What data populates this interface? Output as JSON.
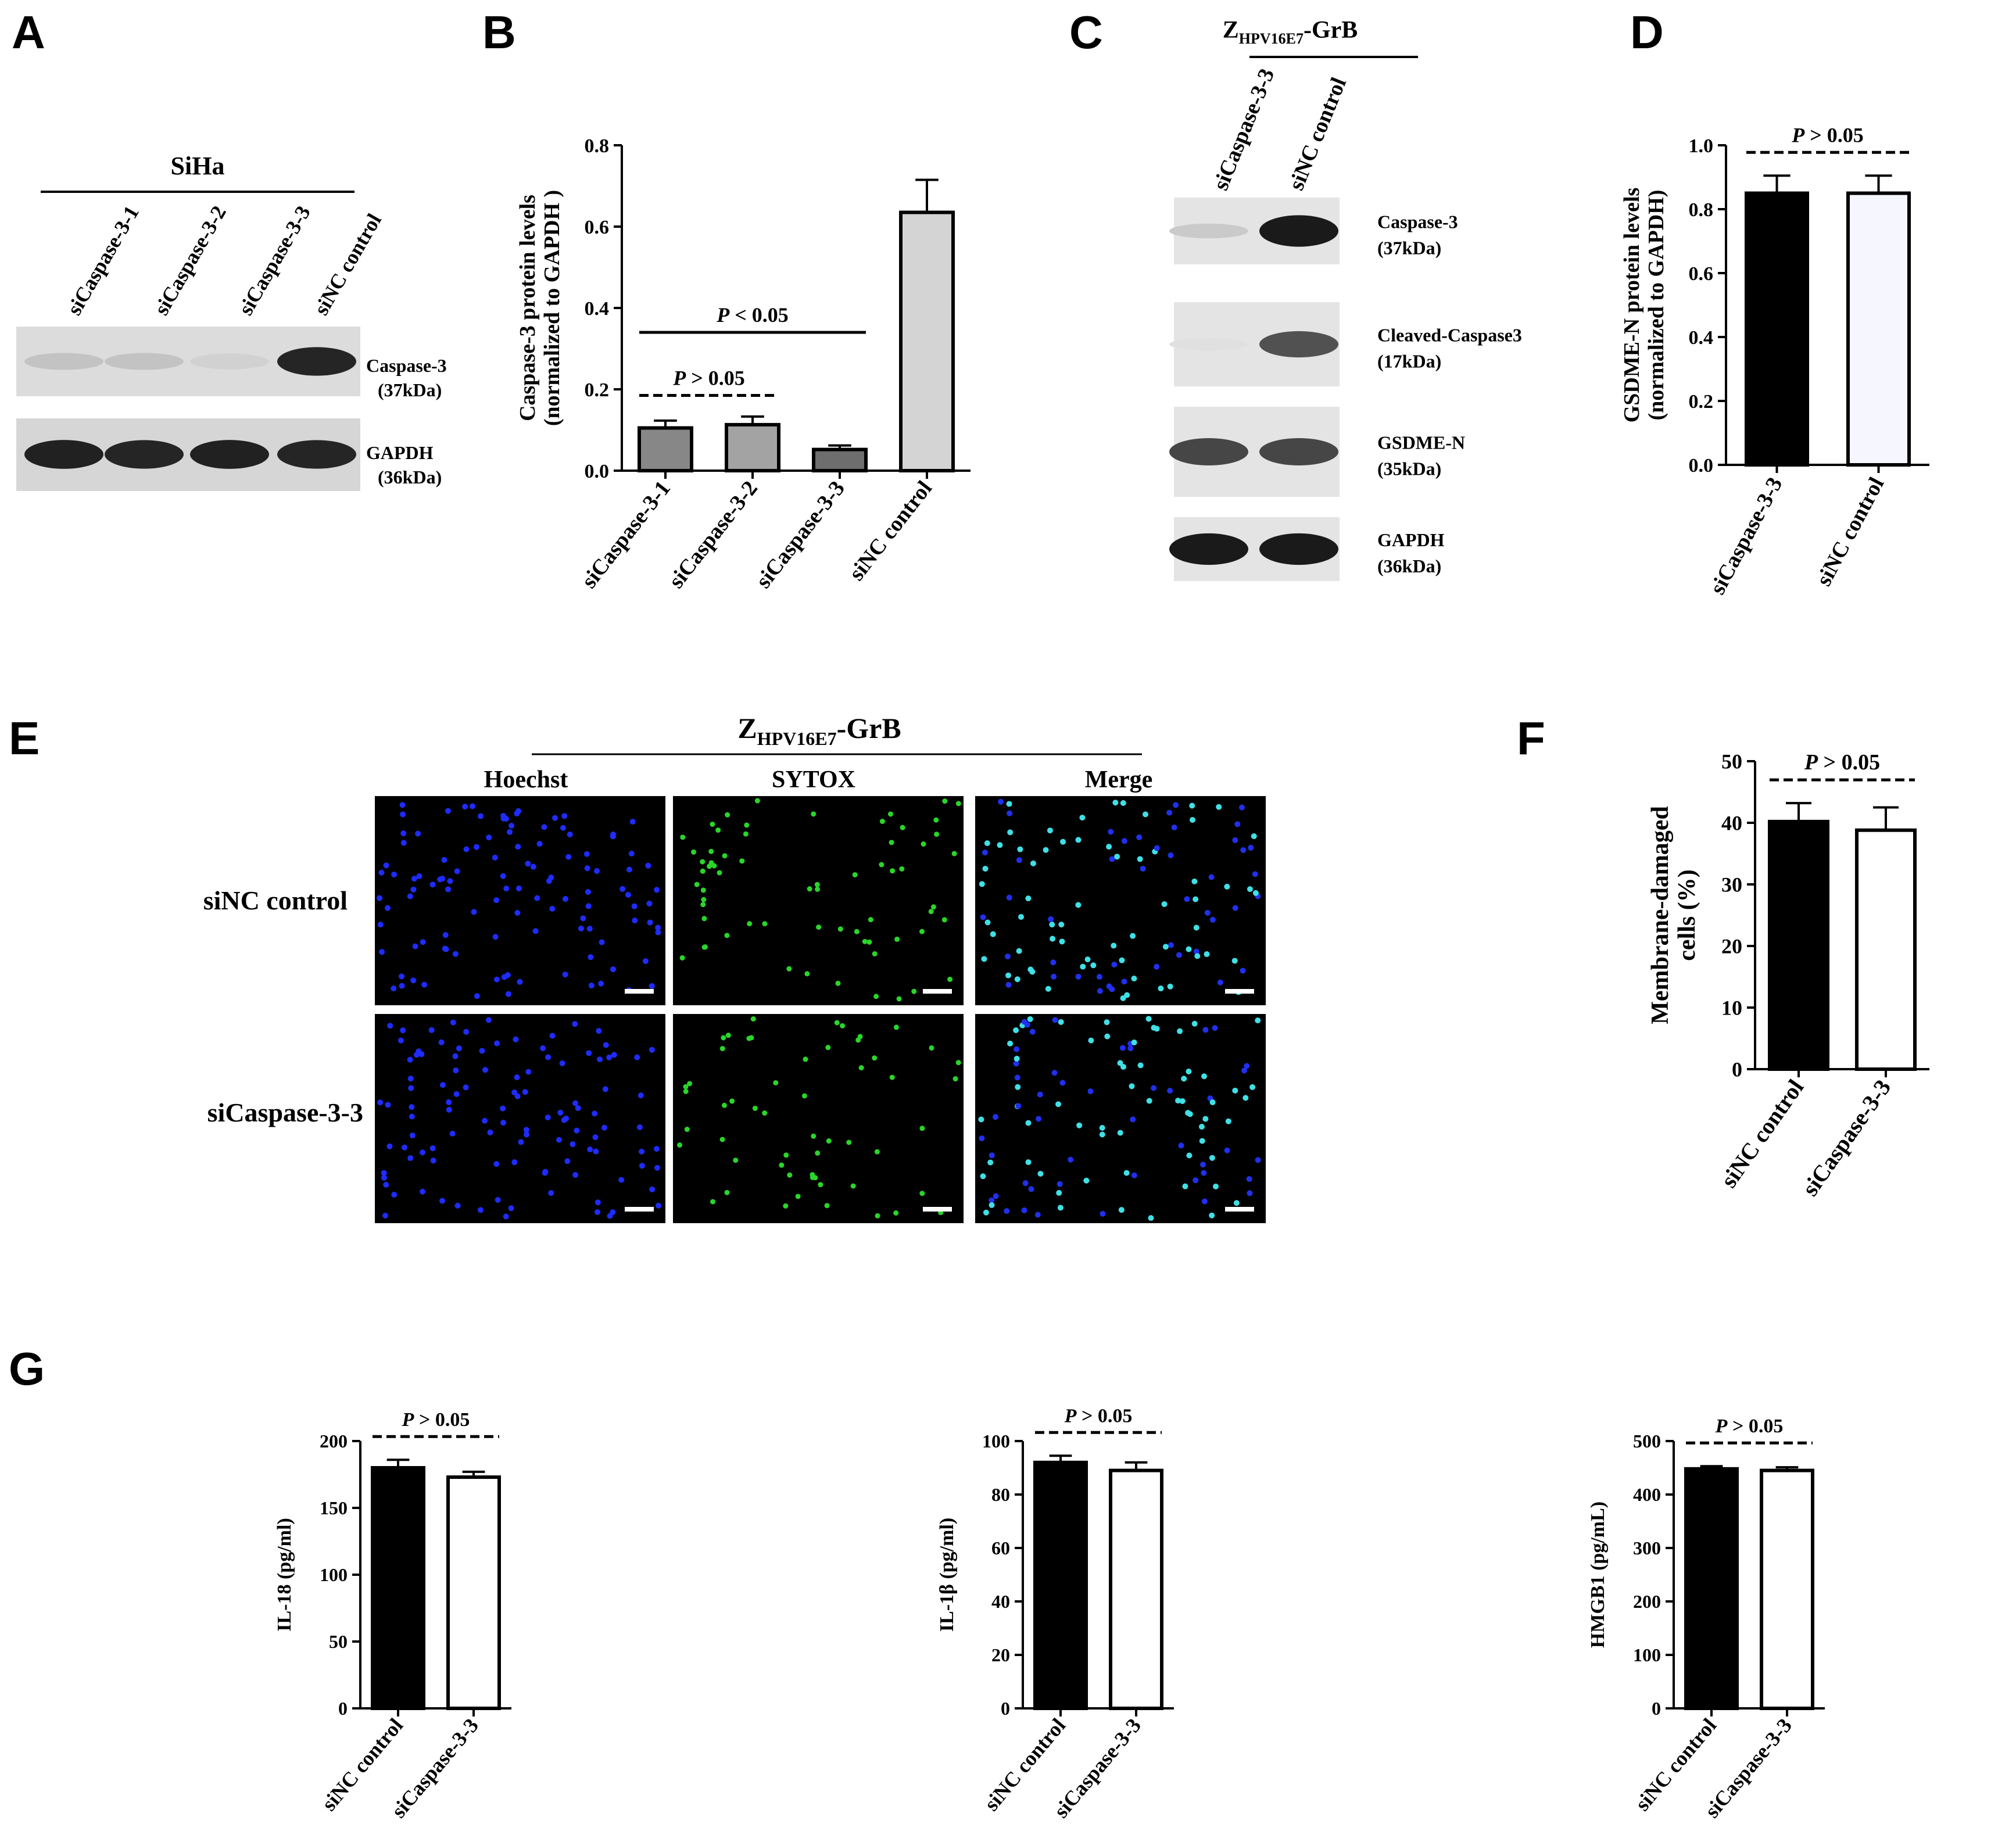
{
  "panel_labels": {
    "A": "A",
    "B": "B",
    "C": "C",
    "D": "D",
    "E": "E",
    "F": "F",
    "G": "G"
  },
  "panel_a": {
    "cell_line": "SiHa",
    "lanes": [
      "siCaspase-3-1",
      "siCaspase-3-2",
      "siCaspase-3-3",
      "siNC control"
    ],
    "bands": [
      {
        "name": "Caspase-3",
        "size": "(37kDa)",
        "intensities": [
          0.18,
          0.18,
          0.12,
          0.9
        ]
      },
      {
        "name": "GAPDH",
        "size": "(36kDa)",
        "intensities": [
          0.92,
          0.9,
          0.92,
          0.9
        ]
      }
    ]
  },
  "panel_c": {
    "treatment_main": "Z",
    "treatment_sub": "HPV16E7",
    "treatment_tail": "-GrB",
    "lanes": [
      "siCaspase-3-3",
      "siNC control"
    ],
    "bands": [
      {
        "name": "Caspase-3",
        "size": "(37kDa)",
        "intensities": [
          0.15,
          0.95
        ]
      },
      {
        "name": "Cleaved-Caspase3",
        "size": "(17kDa)",
        "intensities": [
          0.05,
          0.7
        ]
      },
      {
        "name": "GSDME-N",
        "size": "(35kDa)",
        "intensities": [
          0.75,
          0.75
        ]
      },
      {
        "name": "GAPDH",
        "size": "(36kDa)",
        "intensities": [
          0.95,
          0.95
        ]
      }
    ]
  },
  "panel_e": {
    "treatment_main": "Z",
    "treatment_sub": "HPV16E7",
    "treatment_tail": "-GrB",
    "columns": [
      "Hoechst",
      "SYTOX",
      "Merge"
    ],
    "rows": [
      "siNC control",
      "siCaspase-3-3"
    ]
  },
  "chart_data": [
    {
      "id": "B",
      "type": "bar",
      "ylabel": "Caspase-3 protein levels",
      "ylabel2": "(normalized to GAPDH )",
      "categories": [
        "siCaspase-3-1",
        "siCaspase-3-2",
        "siCaspase-3-3",
        "siNC control"
      ],
      "values": [
        0.105,
        0.113,
        0.052,
        0.635
      ],
      "errors": [
        0.018,
        0.02,
        0.01,
        0.08
      ],
      "colors": [
        "#878787",
        "#a3a3a3",
        "#6e6e6e",
        "#d4d4d4"
      ],
      "ylim": [
        0,
        0.8
      ],
      "yticks": [
        "0.0",
        "0.2",
        "0.4",
        "0.6",
        "0.8"
      ],
      "annotations": [
        {
          "text_pre": "P",
          "text": " > 0.05",
          "from": 0,
          "to": 1,
          "style": "dashed"
        },
        {
          "text_pre": "P",
          "text": " < 0.05",
          "from": 0,
          "to": 2,
          "style": "solid"
        }
      ]
    },
    {
      "id": "D",
      "type": "bar",
      "ylabel": "GSDME-N protein levels",
      "ylabel2": "(normalized to GAPDH)",
      "categories": [
        "siCaspase-3-3",
        "siNC control"
      ],
      "values": [
        0.85,
        0.85
      ],
      "errors": [
        0.055,
        0.055
      ],
      "colors": [
        "#000000",
        "#f5f6ff"
      ],
      "ylim": [
        0,
        1.0
      ],
      "yticks": [
        "0.0",
        "0.2",
        "0.4",
        "0.6",
        "0.8",
        "1.0"
      ],
      "annotations": [
        {
          "text_pre": "P",
          "text": " > 0.05",
          "from": 0,
          "to": 1,
          "style": "dashed"
        }
      ]
    },
    {
      "id": "F",
      "type": "bar",
      "ylabel": "Membrane-damaged",
      "ylabel2": "cells (%)",
      "categories": [
        "siNC control",
        "siCaspase-3-3"
      ],
      "values": [
        40.2,
        38.8
      ],
      "errors": [
        3.0,
        3.7
      ],
      "colors": [
        "#000000",
        "#ffffff"
      ],
      "ylim": [
        0,
        50
      ],
      "yticks": [
        "0",
        "10",
        "20",
        "30",
        "40",
        "50"
      ],
      "annotations": [
        {
          "text_pre": "P",
          "text": " > 0.05",
          "from": 0,
          "to": 1,
          "style": "dashed"
        }
      ]
    },
    {
      "id": "G1",
      "type": "bar",
      "ylabel": "IL-18 (pg/ml)",
      "categories": [
        "siNC control",
        "siCaspase-3-3"
      ],
      "values": [
        180,
        173
      ],
      "errors": [
        6,
        4
      ],
      "colors": [
        "#000000",
        "#ffffff"
      ],
      "ylim": [
        0,
        200
      ],
      "yticks": [
        "0",
        "50",
        "100",
        "150",
        "200"
      ],
      "annotations": [
        {
          "text_pre": "P",
          "text": " > 0.05",
          "from": 0,
          "to": 1,
          "style": "dashed"
        }
      ]
    },
    {
      "id": "G2",
      "type": "bar",
      "ylabel": "IL-1β (pg/ml)",
      "categories": [
        "siNC control",
        "siCaspase-3-3"
      ],
      "values": [
        92,
        89
      ],
      "errors": [
        2.5,
        3
      ],
      "colors": [
        "#000000",
        "#ffffff"
      ],
      "ylim": [
        0,
        100
      ],
      "yticks": [
        "0",
        "20",
        "40",
        "60",
        "80",
        "100"
      ],
      "annotations": [
        {
          "text_pre": "P",
          "text": " > 0.05",
          "from": 0,
          "to": 1,
          "style": "dashed"
        }
      ]
    },
    {
      "id": "G3",
      "type": "bar",
      "ylabel": "HMGB1 (pg/mL)",
      "categories": [
        "siNC control",
        "siCaspase-3-3"
      ],
      "values": [
        448,
        445
      ],
      "errors": [
        5,
        6
      ],
      "colors": [
        "#000000",
        "#ffffff"
      ],
      "ylim": [
        0,
        500
      ],
      "yticks": [
        "0",
        "100",
        "200",
        "300",
        "400",
        "500"
      ],
      "annotations": [
        {
          "text_pre": "P",
          "text": " > 0.05",
          "from": 0,
          "to": 1,
          "style": "dashed"
        }
      ]
    }
  ]
}
